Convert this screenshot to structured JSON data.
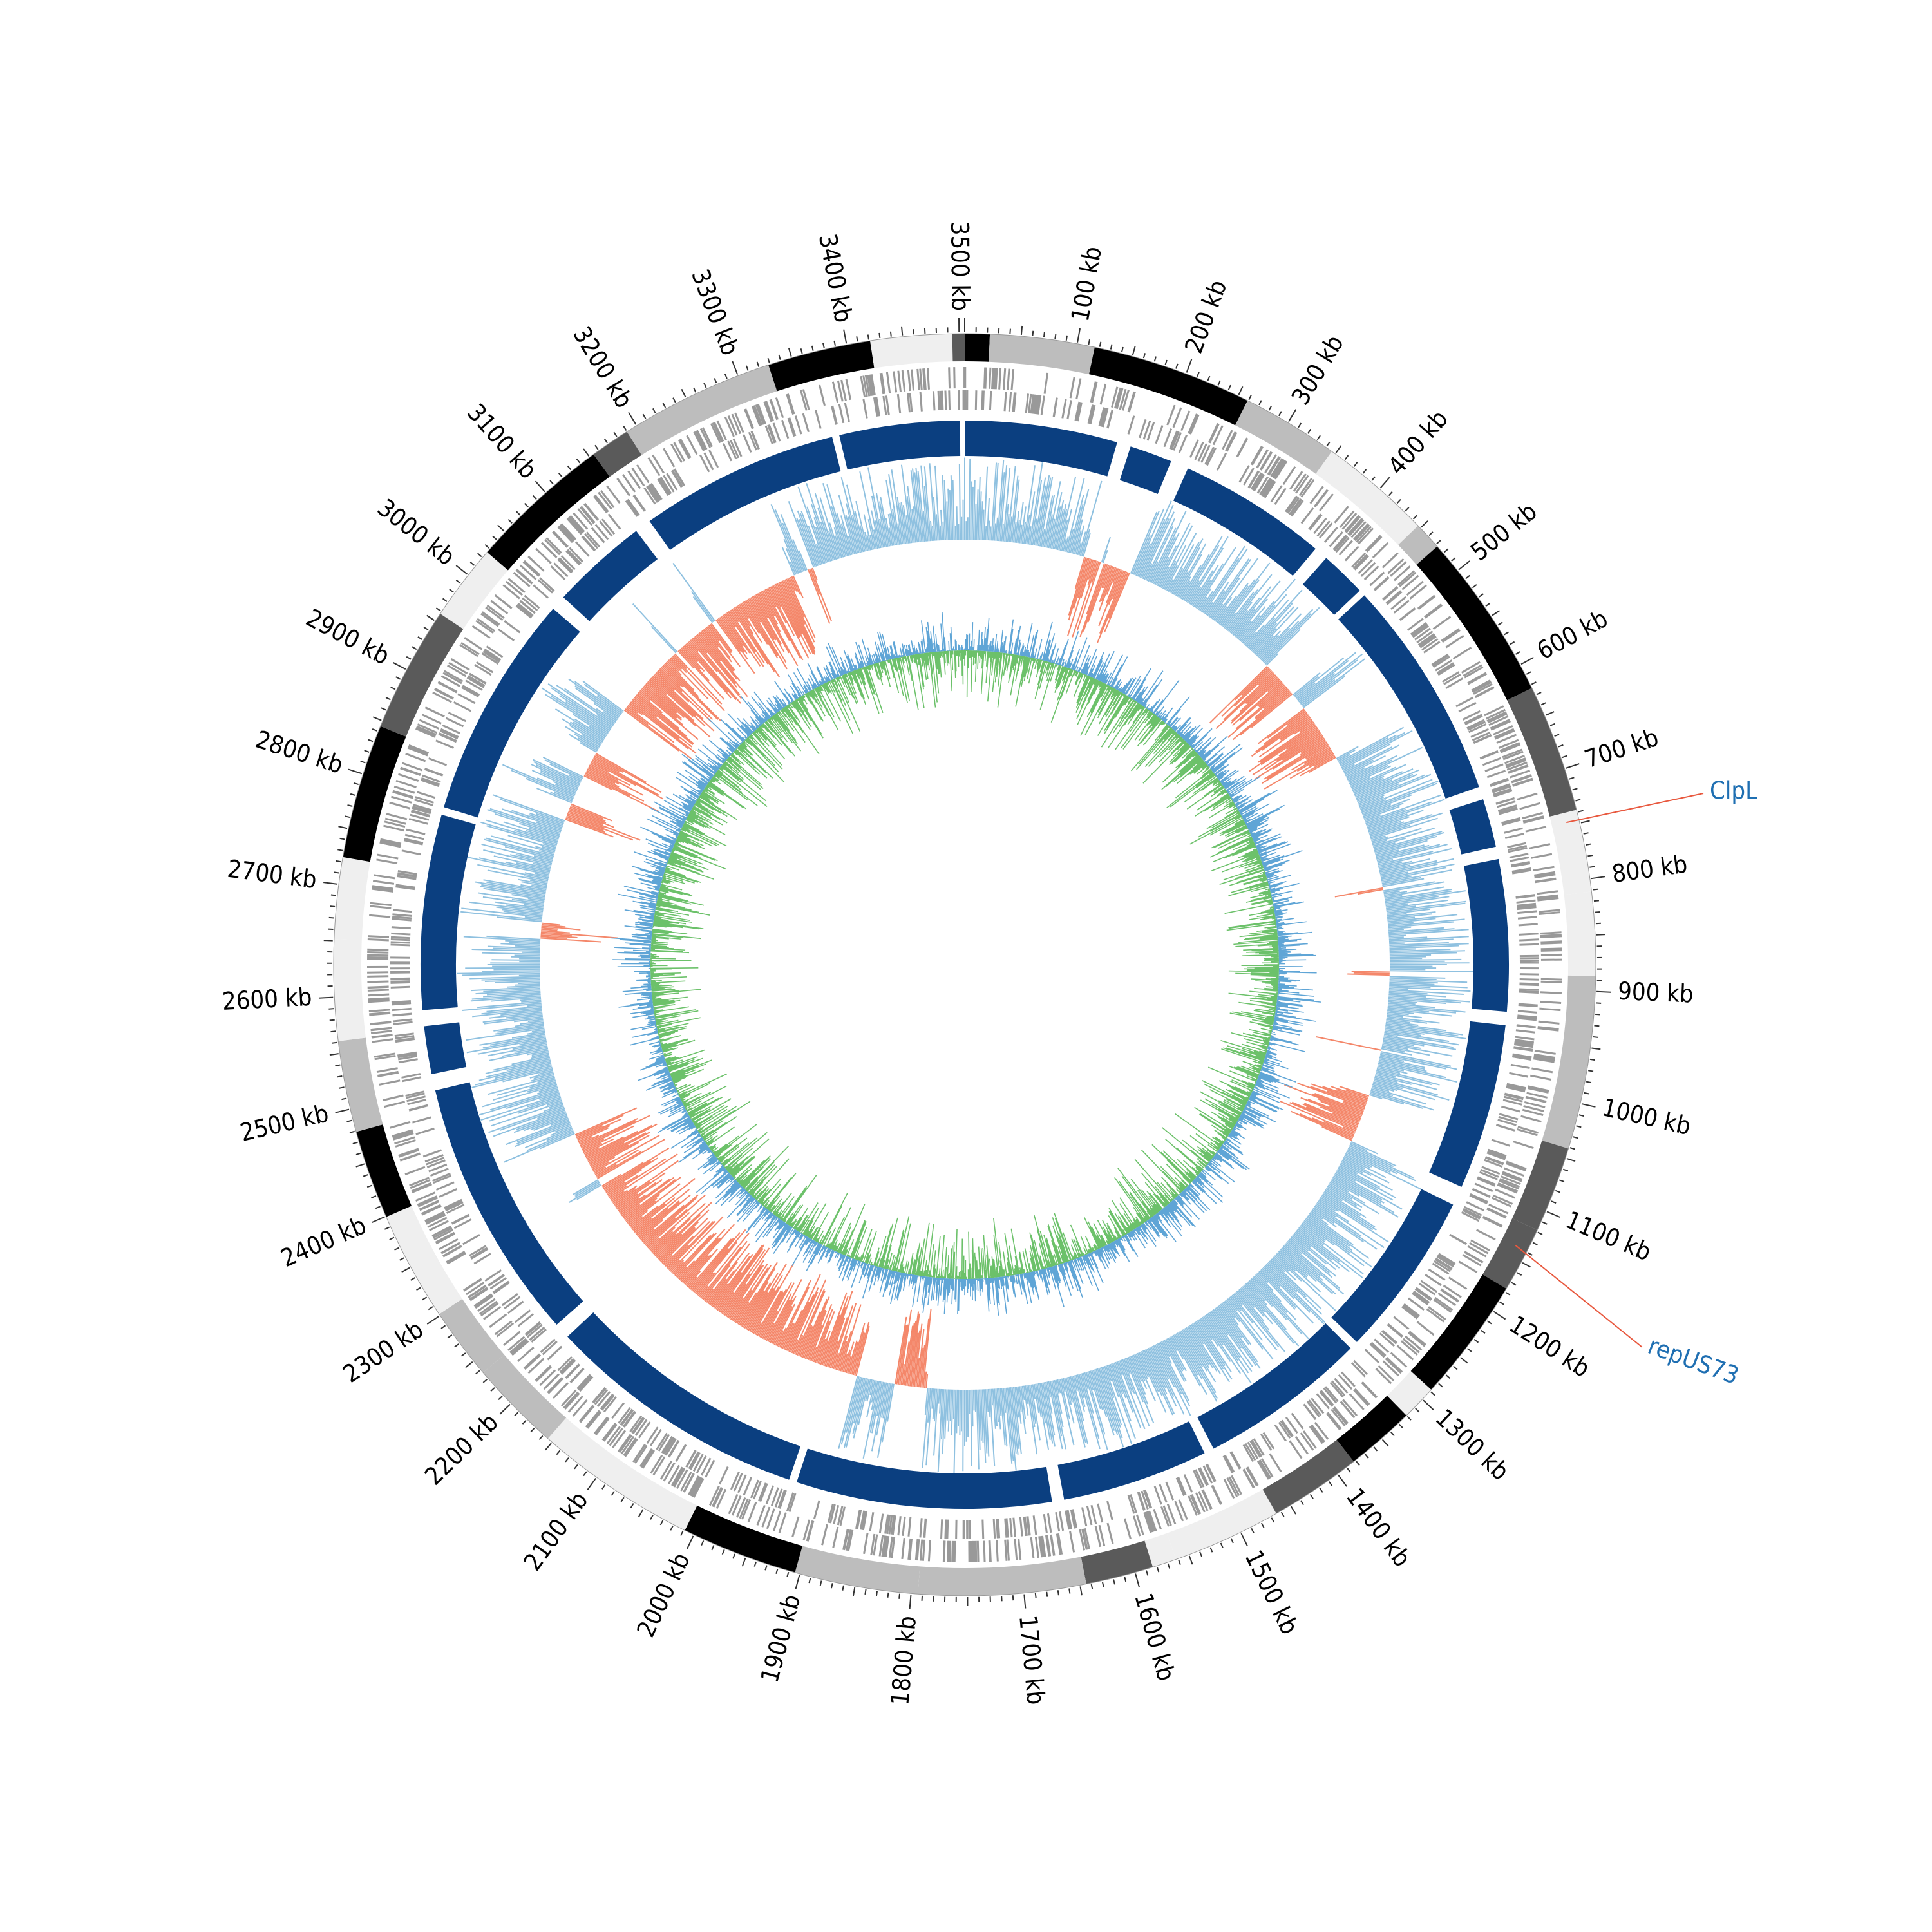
{
  "tick_labels": [
    "100 kb",
    "200 kb",
    "300 kb",
    "400 kb",
    "500 kb",
    "600 kb",
    "700 kb",
    "800 kb",
    "900 kb",
    "1000 kb",
    "1100 kb",
    "1200 kb",
    "1300 kb",
    "1400 kb",
    "1500 kb",
    "1600 kb",
    "1700 kb",
    "1800 kb",
    "1900 kb",
    "2000 kb",
    "2100 kb",
    "2200 kb",
    "2300 kb",
    "2400 kb",
    "2500 kb",
    "2600 kb",
    "2700 kb",
    "2800 kb",
    "2900 kb",
    "3000 kb",
    "3100 kb",
    "3200 kb",
    "3300 kb",
    "3400 kb",
    "3500 kb"
  ],
  "annotations": [
    {
      "label": "ClpL"
    },
    {
      "label": "repUS73"
    }
  ]
}
